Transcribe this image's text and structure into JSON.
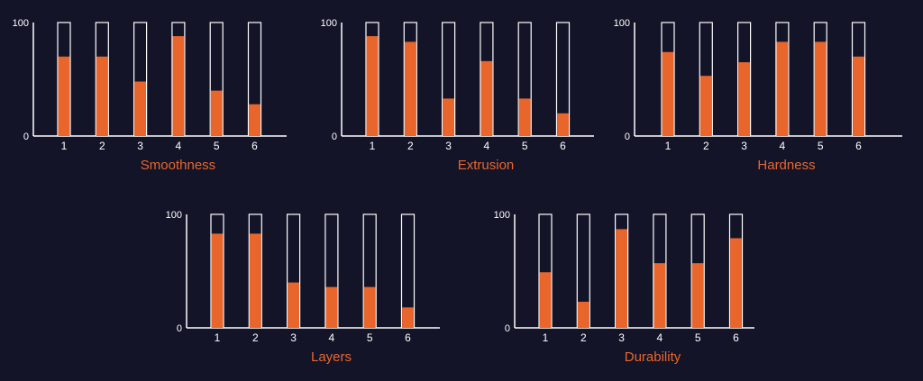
{
  "colors": {
    "background": "#131428",
    "bar_fill": "#e8662c",
    "outline": "#ffffff",
    "title": "#e8662c",
    "tick_text": "#ffffff"
  },
  "chart_data": [
    {
      "type": "bar",
      "title": "Smoothness",
      "categories": [
        "1",
        "2",
        "3",
        "4",
        "5",
        "6"
      ],
      "values": [
        70,
        70,
        48,
        88,
        40,
        28
      ],
      "ylim": [
        0,
        100
      ],
      "yticks": [
        "0",
        "100"
      ],
      "grid": false
    },
    {
      "type": "bar",
      "title": "Extrusion",
      "categories": [
        "1",
        "2",
        "3",
        "4",
        "5",
        "6"
      ],
      "values": [
        88,
        83,
        33,
        66,
        33,
        20
      ],
      "ylim": [
        0,
        100
      ],
      "yticks": [
        "0",
        "100"
      ],
      "grid": false
    },
    {
      "type": "bar",
      "title": "Hardness",
      "categories": [
        "1",
        "2",
        "3",
        "4",
        "5",
        "6"
      ],
      "values": [
        74,
        53,
        65,
        83,
        83,
        70
      ],
      "ylim": [
        0,
        100
      ],
      "yticks": [
        "0",
        "100"
      ],
      "grid": false
    },
    {
      "type": "bar",
      "title": "Layers",
      "categories": [
        "1",
        "2",
        "3",
        "4",
        "5",
        "6"
      ],
      "values": [
        83,
        83,
        40,
        36,
        36,
        18
      ],
      "ylim": [
        0,
        100
      ],
      "yticks": [
        "0",
        "100"
      ],
      "grid": false
    },
    {
      "type": "bar",
      "title": "Durability",
      "categories": [
        "1",
        "2",
        "3",
        "4",
        "5",
        "6"
      ],
      "values": [
        49,
        23,
        87,
        57,
        57,
        79
      ],
      "ylim": [
        0,
        100
      ],
      "yticks": [
        "0",
        "100"
      ],
      "grid": false
    }
  ]
}
